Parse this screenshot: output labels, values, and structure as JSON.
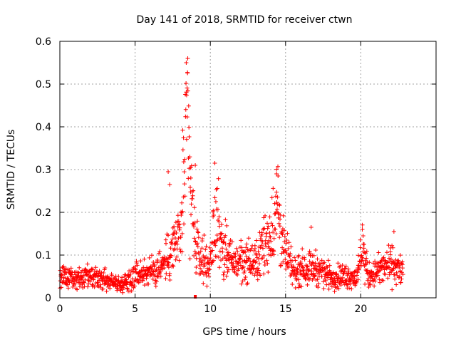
{
  "chart_data": {
    "type": "scatter",
    "title": "Day 141 of 2018, SRMTID for receiver ctwn",
    "xlabel": "GPS time / hours",
    "ylabel": "SRMTID / TECUs",
    "xlim": [
      0,
      25
    ],
    "ylim": [
      0,
      0.6
    ],
    "x_ticks": [
      0,
      5,
      10,
      15,
      20
    ],
    "y_ticks": [
      0,
      0.1,
      0.2,
      0.3,
      0.4,
      0.5,
      0.6
    ],
    "x_tick_labels": [
      "0",
      "5",
      "10",
      "15",
      "20"
    ],
    "y_tick_labels": [
      "0",
      "0.1",
      "0.2",
      "0.3",
      "0.4",
      "0.5",
      "0.6"
    ],
    "grid": true,
    "marker": "+",
    "color": "#ff0000",
    "x_end": 22.8,
    "trend": [
      [
        0.0,
        0.05
      ],
      [
        1.0,
        0.045
      ],
      [
        2.0,
        0.045
      ],
      [
        3.0,
        0.042
      ],
      [
        4.0,
        0.03
      ],
      [
        5.0,
        0.055
      ],
      [
        6.0,
        0.06
      ],
      [
        7.0,
        0.08
      ],
      [
        7.5,
        0.12
      ],
      [
        8.0,
        0.14
      ],
      [
        8.3,
        0.3
      ],
      [
        8.5,
        0.42
      ],
      [
        8.7,
        0.25
      ],
      [
        9.0,
        0.12
      ],
      [
        9.5,
        0.09
      ],
      [
        10.0,
        0.08
      ],
      [
        10.4,
        0.2
      ],
      [
        10.8,
        0.12
      ],
      [
        11.5,
        0.08
      ],
      [
        12.0,
        0.09
      ],
      [
        13.0,
        0.08
      ],
      [
        13.5,
        0.12
      ],
      [
        14.0,
        0.15
      ],
      [
        14.5,
        0.22
      ],
      [
        14.8,
        0.12
      ],
      [
        15.5,
        0.06
      ],
      [
        16.0,
        0.07
      ],
      [
        17.0,
        0.07
      ],
      [
        18.0,
        0.05
      ],
      [
        19.0,
        0.05
      ],
      [
        19.8,
        0.05
      ],
      [
        20.1,
        0.12
      ],
      [
        20.5,
        0.05
      ],
      [
        21.0,
        0.06
      ],
      [
        22.0,
        0.08
      ],
      [
        22.8,
        0.06
      ]
    ],
    "outliers": [
      {
        "x": 10.3,
        "y": 0.315
      },
      {
        "x": 8.5,
        "y": 0.56
      },
      {
        "x": 8.4,
        "y": 0.55
      },
      {
        "x": 7.2,
        "y": 0.295
      },
      {
        "x": 7.3,
        "y": 0.265
      },
      {
        "x": 14.4,
        "y": 0.29
      },
      {
        "x": 14.5,
        "y": 0.285
      },
      {
        "x": 20.1,
        "y": 0.16
      },
      {
        "x": 16.7,
        "y": 0.165
      },
      {
        "x": 22.2,
        "y": 0.155
      },
      {
        "x": 9.0,
        "y": 0.31
      }
    ],
    "bottom_marker": {
      "x": 9.0,
      "y": 0.0
    },
    "approximate": true
  }
}
